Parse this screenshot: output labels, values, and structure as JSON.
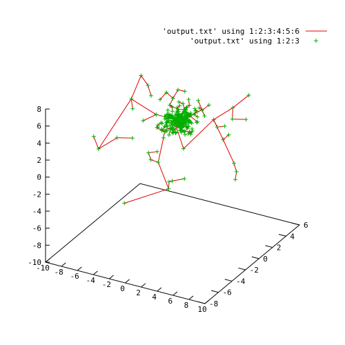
{
  "chart_data": {
    "type": "scatter",
    "dimensions": 3,
    "legend": {
      "placement": "top-right",
      "entries": [
        {
          "label": "'output.txt' using 1:2:3:4:5:6",
          "style": "vectors",
          "color": "#e00000"
        },
        {
          "label": "'output.txt' using 1:2:3",
          "style": "points",
          "marker": "+",
          "color": "#00b000"
        }
      ]
    },
    "axes": {
      "x": {
        "range": [
          -10,
          10
        ],
        "ticks": [
          -10,
          -8,
          -6,
          -4,
          -2,
          0,
          2,
          4,
          6,
          8,
          10
        ]
      },
      "y": {
        "range": [
          -8,
          6
        ],
        "ticks": [
          -8,
          -6,
          -4,
          -2,
          0,
          2,
          4,
          6
        ]
      },
      "z": {
        "range": [
          -10,
          8
        ],
        "ticks": [
          -10,
          -8,
          -6,
          -4,
          -2,
          0,
          2,
          4,
          6,
          8
        ]
      }
    },
    "points": [
      [
        1.3,
        -0.9,
        1.4
      ],
      [
        2.7,
        1.9,
        3.3
      ],
      [
        -1.3,
        0.7,
        3.2
      ],
      [
        -2.3,
        -0.7,
        4.4
      ],
      [
        -0.8,
        0.7,
        2.5
      ],
      [
        0.2,
        0.7,
        3.6
      ],
      [
        0.0,
        0.4,
        4.0
      ],
      [
        1.7,
        -1.3,
        3.8
      ],
      [
        -1.0,
        -1.4,
        3.3
      ],
      [
        1.5,
        0.9,
        4.6
      ],
      [
        -0.6,
        1.4,
        4.0
      ],
      [
        -0.6,
        1.0,
        1.6
      ],
      [
        -1.6,
        -1.4,
        3.5
      ],
      [
        1.2,
        0.1,
        4.6
      ],
      [
        0.0,
        -0.7,
        3.2
      ],
      [
        -1.8,
        0.4,
        3.8
      ],
      [
        -0.8,
        -1.2,
        3.7
      ],
      [
        -0.5,
        -1.3,
        4.3
      ],
      [
        -1.0,
        -1.0,
        2.9
      ],
      [
        -0.1,
        -0.3,
        3.9
      ],
      [
        -0.6,
        -0.8,
        4.1
      ],
      [
        -0.1,
        -1.2,
        3.5
      ],
      [
        -1.5,
        0.6,
        2.1
      ],
      [
        0.1,
        0.1,
        3.1
      ],
      [
        -0.3,
        1.6,
        3.5
      ],
      [
        -1.0,
        -0.1,
        4.2
      ],
      [
        1.6,
        -1.1,
        3.6
      ],
      [
        0.4,
        -0.3,
        4.4
      ],
      [
        -0.8,
        0.8,
        3.3
      ],
      [
        0.3,
        0.5,
        4.0
      ],
      [
        1.4,
        0.3,
        2.7
      ],
      [
        0.3,
        -0.2,
        3.6
      ],
      [
        1.4,
        -0.8,
        3.0
      ],
      [
        0.5,
        -2.1,
        3.6
      ],
      [
        1.1,
        2.1,
        3.9
      ],
      [
        -1.1,
        0.6,
        3.2
      ],
      [
        0.7,
        -0.5,
        3.5
      ],
      [
        -0.6,
        0.0,
        3.1
      ],
      [
        -0.4,
        0.2,
        3.3
      ],
      [
        -0.7,
        -0.1,
        3.5
      ],
      [
        0.6,
        2.1,
        4.9
      ],
      [
        0.2,
        0.5,
        3.3
      ],
      [
        -0.5,
        -0.3,
        3.8
      ],
      [
        0.6,
        -0.3,
        4.9
      ],
      [
        1.3,
        -0.3,
        3.4
      ],
      [
        0.4,
        -0.8,
        4.3
      ],
      [
        -0.2,
        0.1,
        5.0
      ],
      [
        1.6,
        0.8,
        3.5
      ],
      [
        -1.7,
        0.6,
        4.8
      ],
      [
        -0.6,
        -0.6,
        4.5
      ],
      [
        -0.9,
        -0.3,
        2.9
      ],
      [
        -0.1,
        0.4,
        3.6
      ],
      [
        -0.6,
        -0.2,
        2.3
      ],
      [
        -1.2,
        -0.5,
        4.5
      ],
      [
        -0.9,
        -1.0,
        3.6
      ],
      [
        0.0,
        -0.9,
        4.8
      ],
      [
        -0.4,
        1.5,
        3.7
      ],
      [
        1.7,
        -0.3,
        2.8
      ],
      [
        -1.6,
        0.2,
        4.5
      ],
      [
        0.8,
        -0.3,
        4.4
      ],
      [
        -0.4,
        -1.4,
        4.0
      ],
      [
        -0.5,
        -0.3,
        2.9
      ],
      [
        -0.8,
        0.7,
        3.8
      ],
      [
        -0.8,
        -0.9,
        3.5
      ],
      [
        -2.0,
        -0.8,
        3.3
      ],
      [
        1.3,
        -0.5,
        3.8
      ],
      [
        0.7,
        -0.6,
        3.2
      ],
      [
        0.7,
        0.2,
        3.4
      ],
      [
        0.5,
        1.6,
        3.6
      ],
      [
        -0.5,
        -1.0,
        4.6
      ],
      [
        1.8,
        -0.6,
        3.3
      ],
      [
        -0.6,
        -1.1,
        3.2
      ],
      [
        0.6,
        0.6,
        4.0
      ],
      [
        -0.1,
        0.6,
        3.0
      ],
      [
        0.7,
        0.2,
        4.4
      ],
      [
        -1.9,
        1.2,
        4.1
      ],
      [
        -0.6,
        0.7,
        2.6
      ],
      [
        -0.1,
        0.9,
        4.5
      ],
      [
        -0.7,
        0.7,
        3.9
      ],
      [
        0.2,
        -0.4,
        3.5
      ],
      [
        0.9,
        0.3,
        3.9
      ],
      [
        -0.4,
        0.2,
        4.1
      ],
      [
        0.3,
        -0.4,
        4.9
      ],
      [
        0.1,
        1.0,
        3.6
      ],
      [
        -0.5,
        0.6,
        2.6
      ],
      [
        -1.2,
        0.5,
        5.8
      ],
      [
        -0.3,
        -0.1,
        3.8
      ],
      [
        -0.6,
        0.1,
        4.2
      ],
      [
        0.6,
        0.5,
        4.3
      ],
      [
        1.5,
        -0.3,
        4.3
      ],
      [
        -0.6,
        0.4,
        4.5
      ],
      [
        -0.9,
        0.7,
        4.6
      ],
      [
        0.6,
        -0.9,
        4.5
      ],
      [
        0.5,
        1.1,
        3.0
      ],
      [
        -2.3,
        1.7,
        3.2
      ],
      [
        -0.2,
        1.0,
        3.2
      ],
      [
        -0.9,
        -0.3,
        4.3
      ],
      [
        1.1,
        1.0,
        4.8
      ],
      [
        -0.6,
        0.6,
        3.3
      ],
      [
        -0.1,
        -0.3,
        4.1
      ],
      [
        1.6,
        0.8,
        4.1
      ],
      [
        0.8,
        -1.5,
        3.5
      ],
      [
        0.4,
        0.3,
        3.6
      ],
      [
        0.6,
        -1.2,
        3.3
      ],
      [
        0.2,
        0.4,
        3.7
      ],
      [
        -0.4,
        -0.1,
        3.5
      ],
      [
        0.3,
        1.0,
        3.9
      ],
      [
        1.0,
        1.4,
        2.9
      ],
      [
        1.3,
        -1.4,
        3.9
      ],
      [
        0.6,
        0.8,
        3.4
      ],
      [
        0.6,
        -0.1,
        4.2
      ],
      [
        -0.6,
        2.2,
        4.0
      ],
      [
        -0.2,
        -0.2,
        3.8
      ],
      [
        0.3,
        0.2,
        3.4
      ],
      [
        -0.4,
        -0.7,
        3.9
      ],
      [
        1.8,
        -0.8,
        3.2
      ],
      [
        -0.8,
        0.7,
        3.3
      ],
      [
        -0.1,
        -0.8,
        4.3
      ],
      [
        0.8,
        0.0,
        3.3
      ],
      [
        0.8,
        -0.4,
        3.6
      ],
      [
        -0.1,
        -0.3,
        4.9
      ],
      [
        -1.1,
        -1.4,
        4.2
      ],
      [
        -0.8,
        1.5,
        4.6
      ],
      [
        -0.5,
        0.5,
        4.4
      ],
      [
        0.2,
        0.1,
        3.8
      ],
      [
        -0.9,
        1.0,
        5.1
      ],
      [
        -0.6,
        -0.2,
        4.1
      ],
      [
        1.9,
        1.5,
        3.8
      ],
      [
        0.1,
        -0.1,
        4.4
      ],
      [
        -0.2,
        -0.8,
        3.7
      ],
      [
        -0.1,
        0.9,
        3.8
      ],
      [
        0.6,
        0.1,
        3.7
      ],
      [
        -0.1,
        0.5,
        2.8
      ],
      [
        0.9,
        0.0,
        4.3
      ],
      [
        0.5,
        -0.7,
        4.1
      ],
      [
        -0.8,
        1.2,
        3.2
      ],
      [
        -0.9,
        -2.1,
        4.2
      ],
      [
        1.0,
        0.5,
        4.6
      ],
      [
        -1.0,
        0.1,
        4.1
      ],
      [
        -0.2,
        -2.1,
        3.1
      ],
      [
        1.5,
        -0.4,
        3.7
      ],
      [
        -0.1,
        -0.2,
        4.3
      ],
      [
        0.7,
        -0.4,
        3.5
      ],
      [
        0.6,
        0.2,
        3.9
      ],
      [
        0.6,
        0.2,
        4.2
      ],
      [
        0.4,
        0.1,
        3.4
      ],
      [
        0.7,
        0.1,
        3.5
      ],
      [
        -1.3,
        -0.6,
        4.1
      ],
      [
        0.1,
        1.5,
        3.4
      ],
      [
        -1.5,
        0.0,
        3.3
      ],
      [
        0.6,
        -0.5,
        3.1
      ],
      [
        0.0,
        0.1,
        3.5
      ],
      [
        -0.8,
        -0.8,
        4.5
      ],
      [
        -0.2,
        -0.8,
        3.3
      ],
      [
        0.2,
        -0.6,
        3.9
      ],
      [
        -0.6,
        1.8,
        4.0
      ],
      [
        -0.1,
        -0.4,
        3.7
      ],
      [
        -1.2,
        0.7,
        2.6
      ],
      [
        -0.9,
        -0.7,
        3.4
      ],
      [
        1.6,
        -0.7,
        4.7
      ],
      [
        -0.2,
        0.3,
        5.3
      ],
      [
        -0.2,
        -0.8,
        2.9
      ],
      [
        -0.5,
        -2.0,
        4.0
      ],
      [
        -0.8,
        0.9,
        3.7
      ],
      [
        0.1,
        0.3,
        3.5
      ],
      [
        -0.5,
        1.3,
        3.9
      ],
      [
        -1.8,
        0.6,
        3.0
      ],
      [
        0.6,
        0.6,
        4.1
      ],
      [
        -0.2,
        1.2,
        4.3
      ],
      [
        0.1,
        -1.1,
        3.5
      ],
      [
        0.9,
        0.4,
        3.5
      ],
      [
        0.9,
        1.3,
        4.3
      ],
      [
        0.5,
        -0.3,
        3.7
      ],
      [
        0.0,
        0.9,
        3.5
      ],
      [
        -0.6,
        -0.3,
        4.3
      ],
      [
        1.2,
        -0.1,
        3.9
      ],
      [
        -0.9,
        1.8,
        3.7
      ],
      [
        -0.6,
        0.7,
        3.8
      ],
      [
        0.4,
        -0.2,
        4.6
      ],
      [
        -0.6,
        -0.8,
        3.9
      ],
      [
        -1.1,
        -0.4,
        4.3
      ],
      [
        -0.5,
        -0.5,
        3.8
      ],
      [
        -0.4,
        1.5,
        4.2
      ],
      [
        1.1,
        0.0,
        3.4
      ],
      [
        -0.1,
        0.0,
        3.8
      ],
      [
        0.4,
        0.4,
        3.4
      ],
      [
        -0.6,
        0.3,
        4.2
      ],
      [
        0.8,
        0.1,
        3.3
      ],
      [
        0.9,
        -0.4,
        3.6
      ],
      [
        0.6,
        -0.9,
        3.9
      ],
      [
        0.8,
        0.9,
        3.1
      ],
      [
        -0.3,
        0.6,
        3.4
      ],
      [
        -0.2,
        1.2,
        4.2
      ],
      [
        -0.2,
        -1.6,
        4.6
      ],
      [
        -0.4,
        0.5,
        4.0
      ],
      [
        -0.2,
        1.3,
        3.6
      ],
      [
        -0.1,
        -0.8,
        3.8
      ],
      [
        -1.5,
        -0.4,
        4.2
      ],
      [
        0.3,
        -0.3,
        3.2
      ],
      [
        0.8,
        -0.5,
        3.2
      ],
      [
        0.4,
        0.6,
        4.4
      ],
      [
        0.2,
        0.1,
        3.6
      ],
      [
        1.0,
        0.6,
        4.3
      ],
      [
        -0.5,
        0.3,
        3.9
      ],
      [
        -0.1,
        1.0,
        3.0
      ],
      [
        -0.7,
        -1.7,
        4.4
      ],
      [
        -1.2,
        0.0,
        4.2
      ],
      [
        0.8,
        -0.3,
        3.8
      ],
      [
        -0.5,
        0.2,
        3.0
      ],
      [
        1.6,
        0.0,
        3.2
      ],
      [
        -0.3,
        0.5,
        3.5
      ],
      [
        0.3,
        0.6,
        3.4
      ],
      [
        -0.4,
        -0.8,
        3.7
      ],
      [
        -1.3,
        -0.4,
        3.9
      ],
      [
        0.8,
        -0.5,
        3.8
      ],
      [
        0.4,
        0.1,
        4.2
      ],
      [
        -1.3,
        -0.1,
        4.3
      ],
      [
        -0.6,
        0.6,
        3.9
      ],
      [
        0.5,
        -0.4,
        3.9
      ],
      [
        0.4,
        0.0,
        3.1
      ],
      [
        0.4,
        -1.0,
        3.2
      ],
      [
        -0.1,
        0.6,
        4.2
      ],
      [
        0.9,
        0.3,
        3.8
      ],
      [
        0.2,
        0.8,
        3.8
      ],
      [
        -1.2,
        0.2,
        3.6
      ],
      [
        -0.1,
        -0.2,
        4.1
      ],
      [
        0.6,
        -0.4,
        3.7
      ],
      [
        0.3,
        0.5,
        4.5
      ],
      [
        0.3,
        -0.3,
        4.1
      ],
      [
        -0.1,
        0.2,
        3.5
      ],
      [
        -0.3,
        -0.3,
        4.2
      ],
      [
        0.4,
        0.3,
        3.6
      ],
      [
        -0.6,
        0.3,
        3.3
      ],
      [
        0.3,
        -0.2,
        3.8
      ],
      [
        0.0,
        0.4,
        4.0
      ],
      [
        0.5,
        0.2,
        3.6
      ],
      [
        -0.3,
        0.2,
        3.8
      ],
      [
        0.2,
        -0.3,
        3.7
      ],
      [
        0.1,
        0.0,
        3.9
      ],
      [
        -0.2,
        0.3,
        3.5
      ],
      [
        0.3,
        0.1,
        4.0
      ],
      [
        -0.4,
        -0.1,
        3.7
      ],
      [
        0.1,
        0.2,
        3.8
      ],
      [
        0.0,
        -0.2,
        3.6
      ],
      [
        0.2,
        0.3,
        3.9
      ],
      [
        -0.1,
        -0.1,
        3.7
      ],
      [
        0.4,
        0.0,
        3.6
      ],
      [
        -0.3,
        0.4,
        4.1
      ],
      [
        0.2,
        -0.1,
        3.5
      ],
      [
        -0.2,
        0.1,
        3.9
      ],
      [
        0.1,
        0.3,
        3.7
      ],
      [
        0.3,
        -0.3,
        3.9
      ],
      [
        -0.5,
        0.0,
        3.8
      ],
      [
        0.0,
        0.1,
        3.7
      ],
      [
        0.2,
        0.4,
        3.8
      ],
      [
        -5.6,
        -0.5,
        5.3
      ],
      [
        -5.3,
        0.6,
        7.4
      ],
      [
        -3.5,
        -0.5,
        7.4
      ],
      [
        3.9,
        -0.2,
        6.7
      ],
      [
        6.4,
        0.4,
        6.6
      ],
      [
        -1.6,
        1.7,
        5.9
      ],
      [
        -2.2,
        0.7,
        6.1
      ],
      [
        -3.2,
        -0.4,
        6.2
      ],
      [
        -1.9,
        -0.6,
        6.2
      ],
      [
        2.2,
        -1.2,
        7.6
      ],
      [
        2.5,
        0.0,
        5.9
      ],
      [
        0.7,
        0.0,
        7.4
      ],
      [
        -7.0,
        -3.7,
        1.2
      ],
      [
        -6.7,
        -1.3,
        1.0
      ],
      [
        -6.1,
        0.3,
        3.5
      ],
      [
        0.0,
        0.2,
        3.5
      ],
      [
        -5.2,
        -0.8,
        1.0
      ],
      [
        5.5,
        0.0,
        2.9
      ],
      [
        5.7,
        0.6,
        3.1
      ],
      [
        5.3,
        1.6,
        4.2
      ],
      [
        8.4,
        -1.8,
        2.0
      ],
      [
        9.3,
        -2.5,
        1.7
      ],
      [
        10.0,
        -3.5,
        1.6
      ],
      [
        -8.7,
        -2.4,
        1.4
      ],
      [
        -5.3,
        0.9,
        1.9
      ],
      [
        -2.3,
        -0.4,
        -1.4
      ],
      [
        -2.8,
        -0.9,
        -0.9
      ],
      [
        -0.4,
        -1.1,
        -3.6
      ],
      [
        -0.1,
        -1.4,
        -2.5
      ],
      [
        0.9,
        -2.1,
        -1.7
      ],
      [
        2.0,
        -1.6,
        -1.5
      ],
      [
        -0.9,
        -3.5,
        2.1
      ],
      [
        -0.4,
        -2.8,
        1.9
      ],
      [
        4.3,
        4.8,
        1.8
      ],
      [
        3.4,
        1.6,
        2.8
      ],
      [
        5.2,
        0.6,
        4.0
      ],
      [
        10.0,
        -1.5,
        10.2
      ],
      [
        -2.4,
        -5.3,
        -3.0
      ],
      [
        0.4,
        0.1,
        3.3
      ],
      [
        -1.2,
        -0.6,
        2.6
      ]
    ]
  }
}
